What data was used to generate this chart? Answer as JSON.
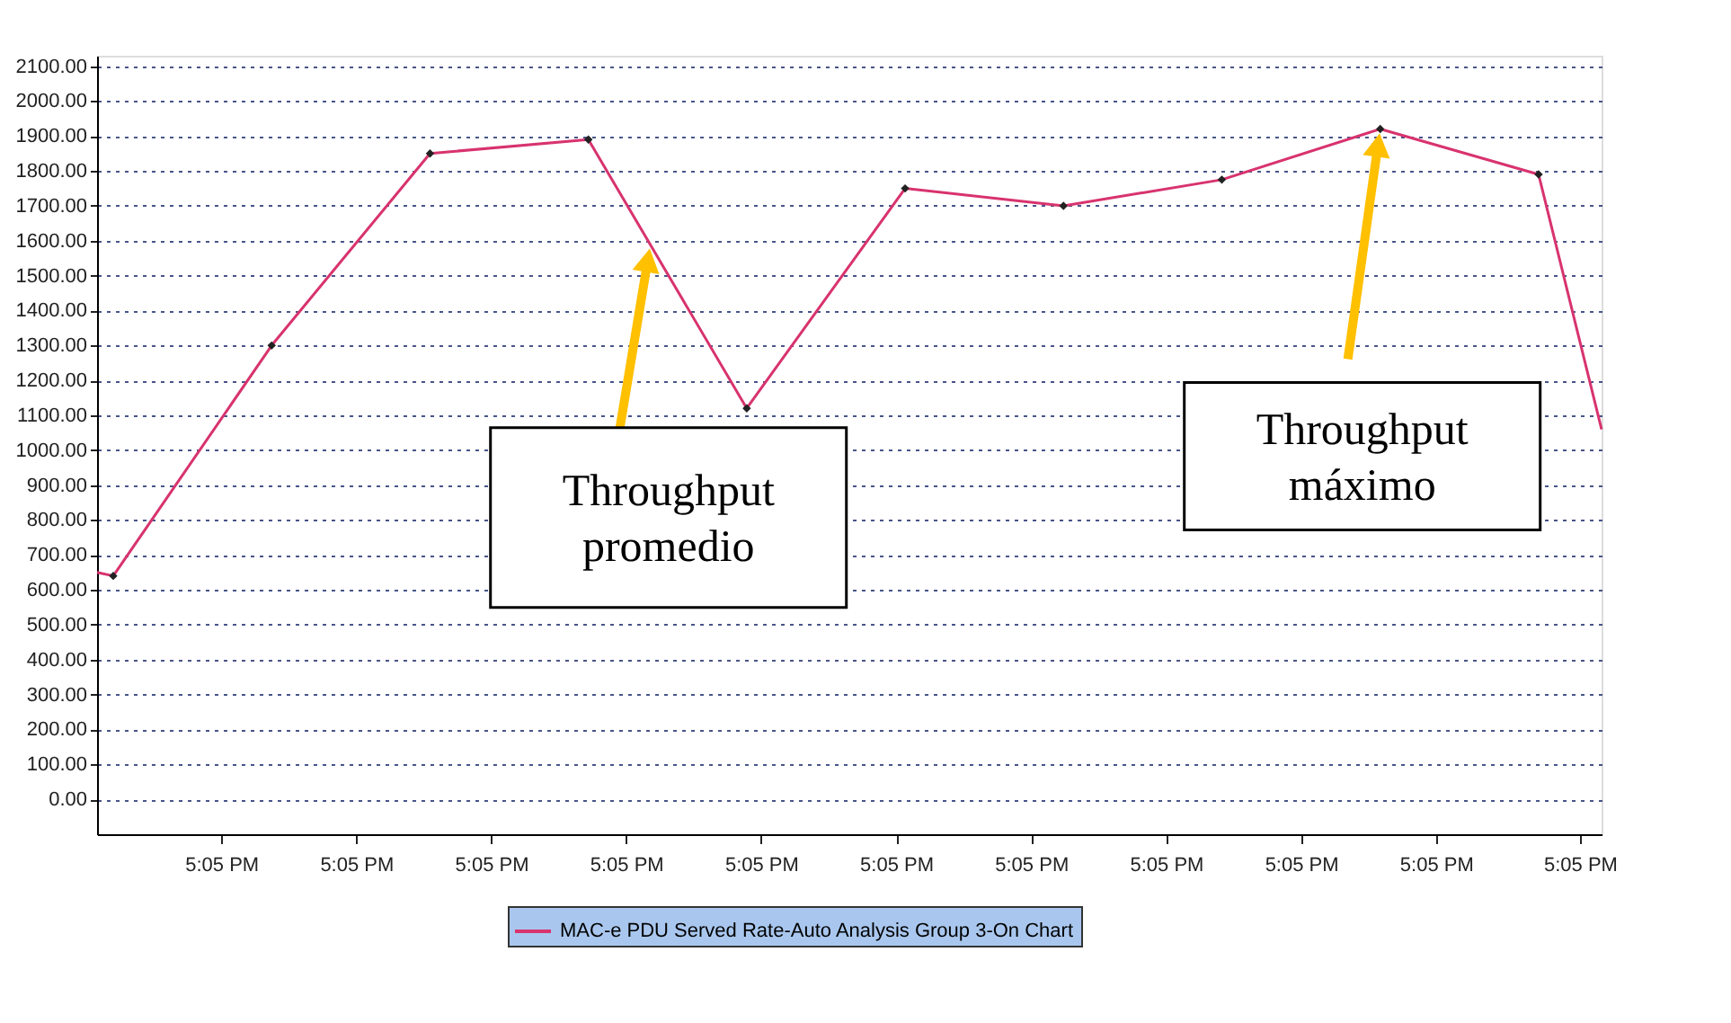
{
  "chart_data": {
    "type": "line",
    "x": [
      17.07472,
      17.0749,
      17.07666,
      17.07842,
      17.08018,
      17.08194,
      17.0837,
      17.08546,
      17.08722,
      17.08898,
      17.09074,
      17.09144
    ],
    "series": [
      {
        "name": "MAC-e PDU Served Rate-Auto Analysis Group 3-On Chart",
        "color": "#d8336e",
        "values": [
          650,
          640,
          1300,
          1850,
          1890,
          1120,
          1750,
          1700,
          1775,
          1920,
          1790,
          1060
        ]
      }
    ],
    "xlim": [
      17.07472,
      17.09144
    ],
    "xticks": [
      {
        "value": 17.0761,
        "label": "5:05 PM"
      },
      {
        "value": 17.0776,
        "label": "5:05 PM"
      },
      {
        "value": 17.0791,
        "label": "5:05 PM"
      },
      {
        "value": 17.0806,
        "label": "5:05 PM"
      },
      {
        "value": 17.0821,
        "label": "5:05 PM"
      },
      {
        "value": 17.0836,
        "label": "5:05 PM"
      },
      {
        "value": 17.0851,
        "label": "5:05 PM"
      },
      {
        "value": 17.0866,
        "label": "5:05 PM"
      },
      {
        "value": 17.0881,
        "label": "5:05 PM"
      },
      {
        "value": 17.0896,
        "label": "5:05 PM"
      },
      {
        "value": 17.0912,
        "label": "5:05 PM"
      }
    ],
    "ylim": [
      -100,
      2130
    ],
    "yticks": [
      {
        "value": 0,
        "label": "0.00"
      },
      {
        "value": 100,
        "label": "100.00"
      },
      {
        "value": 200,
        "label": "200.00"
      },
      {
        "value": 300,
        "label": "300.00"
      },
      {
        "value": 400,
        "label": "400.00"
      },
      {
        "value": 500,
        "label": "500.00"
      },
      {
        "value": 600,
        "label": "600.00"
      },
      {
        "value": 700,
        "label": "700.00"
      },
      {
        "value": 800,
        "label": "800.00"
      },
      {
        "value": 900,
        "label": "900.00"
      },
      {
        "value": 1000,
        "label": "1000.00"
      },
      {
        "value": 1100,
        "label": "1100.00"
      },
      {
        "value": 1200,
        "label": "1200.00"
      },
      {
        "value": 1300,
        "label": "1300.00"
      },
      {
        "value": 1400,
        "label": "1400.00"
      },
      {
        "value": 1500,
        "label": "1500.00"
      },
      {
        "value": 1600,
        "label": "1600.00"
      },
      {
        "value": 1700,
        "label": "1700.00"
      },
      {
        "value": 1800,
        "label": "1800.00"
      },
      {
        "value": 1900,
        "label": "1900.00"
      },
      {
        "value": 2000,
        "label": "2000.00"
      },
      {
        "value": 2100,
        "label": "2100.00"
      }
    ],
    "grid": "y",
    "legend": "bottom",
    "marker": "diamond",
    "line_style": "solid",
    "annotations": [
      {
        "text": "Throughput promedio",
        "x": 17.08087,
        "y": 1590
      },
      {
        "text": "Throughput máximo",
        "x": 17.08898,
        "y": 1920
      }
    ]
  }
}
